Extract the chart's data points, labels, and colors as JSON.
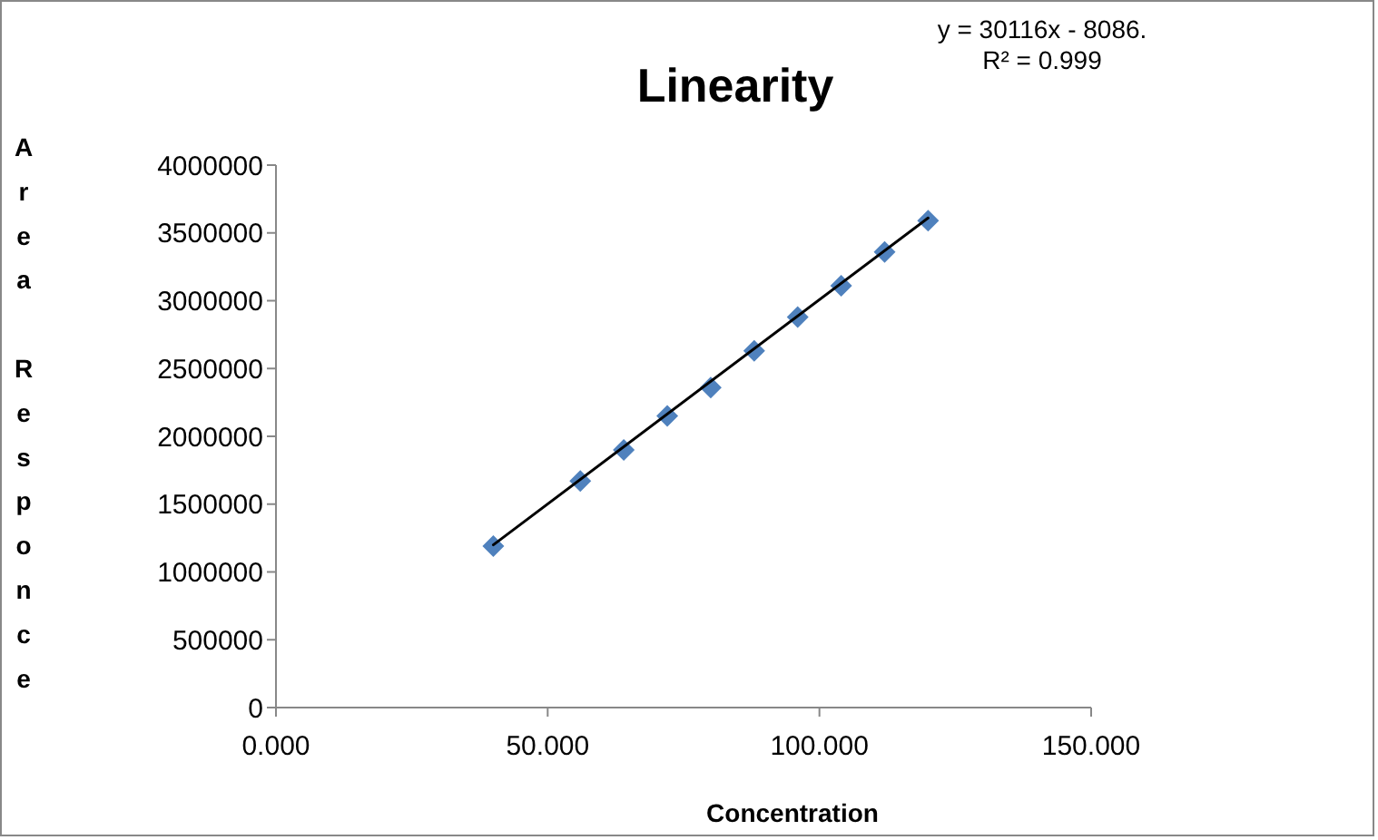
{
  "chart_data": {
    "type": "scatter",
    "title": "Linearity",
    "xlabel": "Concentration",
    "ylabel": "Area Responce",
    "annotations": [
      "y = 30116x - 8086.",
      "R² = 0.999"
    ],
    "series": [
      {
        "color": "#4f81bd",
        "marker": "diamond",
        "x": [
          40,
          56,
          64,
          72,
          80,
          88,
          96,
          104,
          112,
          120
        ],
        "values": [
          1190000,
          1670000,
          1900000,
          2150000,
          2360000,
          2630000,
          2880000,
          3110000,
          3360000,
          3590000
        ]
      },
      {
        "type": "line",
        "color": "#000000",
        "marker": "none",
        "x": [
          40,
          120
        ],
        "values": [
          1200000,
          3610000
        ]
      }
    ],
    "xlim": [
      0,
      150
    ],
    "xticks": [
      {
        "value": 0,
        "label": "0.000"
      },
      {
        "value": 50,
        "label": "50.000"
      },
      {
        "value": 100,
        "label": "100.000"
      },
      {
        "value": 150,
        "label": "150.000"
      }
    ],
    "ylim": [
      0,
      4000000
    ],
    "yticks": [
      0,
      500000,
      1000000,
      1500000,
      2000000,
      2500000,
      3000000,
      3500000,
      4000000
    ],
    "grid": false
  }
}
